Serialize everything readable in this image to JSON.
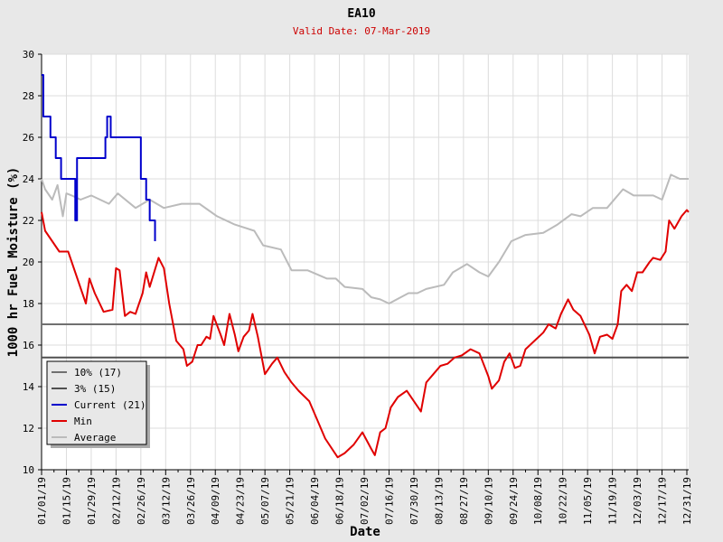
{
  "chart_data": {
    "type": "line",
    "title": "EA10",
    "subtitle": "Valid Date: 07-Mar-2019",
    "xlabel": "Date",
    "ylabel": "1000 hr Fuel Moisture (%)",
    "ylim": [
      10,
      30
    ],
    "yticks": [
      10,
      12,
      14,
      16,
      18,
      20,
      22,
      24,
      26,
      28,
      30
    ],
    "xlim_days": [
      0,
      365
    ],
    "xtick_labels": [
      "01/01/19",
      "01/15/19",
      "01/29/19",
      "02/12/19",
      "02/26/19",
      "03/12/19",
      "03/26/19",
      "04/09/19",
      "04/23/19",
      "05/07/19",
      "05/21/19",
      "06/04/19",
      "06/18/19",
      "07/02/19",
      "07/16/19",
      "07/30/19",
      "08/13/19",
      "08/27/19",
      "09/10/19",
      "09/24/19",
      "10/08/19",
      "10/22/19",
      "11/05/19",
      "11/19/19",
      "12/03/19",
      "12/17/19",
      "12/31/19"
    ],
    "grid": true,
    "legend_position": "bottom-left",
    "thresholds": [
      {
        "name": "10% (17)",
        "value": 17.0,
        "color": "#707070"
      },
      {
        "name": "3% (15)",
        "value": 15.4,
        "color": "#505050"
      }
    ],
    "series": [
      {
        "name": "Current (21)",
        "color": "#0000cc",
        "step": true,
        "points": [
          [
            0,
            29
          ],
          [
            1,
            27
          ],
          [
            4,
            27
          ],
          [
            5,
            26
          ],
          [
            7,
            26
          ],
          [
            8,
            25
          ],
          [
            10,
            25
          ],
          [
            11,
            24
          ],
          [
            18,
            24
          ],
          [
            19,
            22
          ],
          [
            20,
            25
          ],
          [
            34,
            25
          ],
          [
            36,
            26
          ],
          [
            37,
            27
          ],
          [
            38,
            27
          ],
          [
            39,
            26
          ],
          [
            54,
            26
          ],
          [
            56,
            24
          ],
          [
            59,
            23
          ],
          [
            61,
            22
          ],
          [
            64,
            21
          ]
        ]
      },
      {
        "name": "Min",
        "color": "#e00000",
        "points": [
          [
            0,
            22.4
          ],
          [
            2,
            21.5
          ],
          [
            6,
            21
          ],
          [
            10,
            20.5
          ],
          [
            15,
            20.5
          ],
          [
            19,
            19.5
          ],
          [
            25,
            18
          ],
          [
            27,
            19.2
          ],
          [
            30,
            18.5
          ],
          [
            35,
            17.6
          ],
          [
            40,
            17.7
          ],
          [
            42,
            19.7
          ],
          [
            44,
            19.6
          ],
          [
            47,
            17.4
          ],
          [
            50,
            17.6
          ],
          [
            53,
            17.5
          ],
          [
            57,
            18.5
          ],
          [
            59,
            19.5
          ],
          [
            61,
            18.8
          ],
          [
            66,
            20.2
          ],
          [
            69,
            19.7
          ],
          [
            72,
            18
          ],
          [
            76,
            16.2
          ],
          [
            80,
            15.8
          ],
          [
            82,
            15
          ],
          [
            85,
            15.2
          ],
          [
            88,
            16
          ],
          [
            90,
            16
          ],
          [
            93,
            16.4
          ],
          [
            95,
            16.3
          ],
          [
            97,
            17.4
          ],
          [
            101,
            16.5
          ],
          [
            103,
            16
          ],
          [
            106,
            17.5
          ],
          [
            109,
            16.5
          ],
          [
            111,
            15.7
          ],
          [
            114,
            16.4
          ],
          [
            117,
            16.7
          ],
          [
            119,
            17.5
          ],
          [
            122,
            16.4
          ],
          [
            126,
            14.6
          ],
          [
            130,
            15.1
          ],
          [
            133,
            15.4
          ],
          [
            137,
            14.7
          ],
          [
            141,
            14.2
          ],
          [
            145,
            13.8
          ],
          [
            151,
            13.3
          ],
          [
            155,
            12.5
          ],
          [
            160,
            11.5
          ],
          [
            167,
            10.6
          ],
          [
            171,
            10.8
          ],
          [
            176,
            11.2
          ],
          [
            181,
            11.8
          ],
          [
            186,
            11
          ],
          [
            188,
            10.7
          ],
          [
            191,
            11.8
          ],
          [
            194,
            12
          ],
          [
            197,
            13
          ],
          [
            201,
            13.5
          ],
          [
            206,
            13.8
          ],
          [
            210,
            13.3
          ],
          [
            214,
            12.8
          ],
          [
            217,
            14.2
          ],
          [
            221,
            14.6
          ],
          [
            225,
            15
          ],
          [
            229,
            15.1
          ],
          [
            233,
            15.4
          ],
          [
            237,
            15.5
          ],
          [
            242,
            15.8
          ],
          [
            247,
            15.6
          ],
          [
            252,
            14.5
          ],
          [
            254,
            13.9
          ],
          [
            258,
            14.3
          ],
          [
            261,
            15.2
          ],
          [
            264,
            15.6
          ],
          [
            267,
            14.9
          ],
          [
            270,
            15
          ],
          [
            273,
            15.8
          ],
          [
            278,
            16.2
          ],
          [
            283,
            16.6
          ],
          [
            286,
            17
          ],
          [
            290,
            16.8
          ],
          [
            293,
            17.5
          ],
          [
            297,
            18.2
          ],
          [
            300,
            17.7
          ],
          [
            304,
            17.4
          ],
          [
            309,
            16.5
          ],
          [
            312,
            15.6
          ],
          [
            315,
            16.4
          ],
          [
            319,
            16.5
          ],
          [
            322,
            16.3
          ],
          [
            325,
            17
          ],
          [
            327,
            18.6
          ],
          [
            330,
            18.9
          ],
          [
            333,
            18.6
          ],
          [
            336,
            19.5
          ],
          [
            339,
            19.5
          ],
          [
            343,
            20
          ],
          [
            345,
            20.2
          ],
          [
            349,
            20.1
          ],
          [
            352,
            20.5
          ],
          [
            354,
            22
          ],
          [
            357,
            21.6
          ],
          [
            361,
            22.2
          ],
          [
            364,
            22.5
          ],
          [
            365,
            22.4
          ]
        ]
      },
      {
        "name": "Average",
        "color": "#bbbbbb",
        "points": [
          [
            0,
            24
          ],
          [
            2,
            23.5
          ],
          [
            6,
            23
          ],
          [
            9,
            23.7
          ],
          [
            12,
            22.2
          ],
          [
            14,
            23.3
          ],
          [
            17,
            23.2
          ],
          [
            22,
            23
          ],
          [
            28,
            23.2
          ],
          [
            38,
            22.8
          ],
          [
            43,
            23.3
          ],
          [
            53,
            22.6
          ],
          [
            61,
            23
          ],
          [
            69,
            22.6
          ],
          [
            79,
            22.8
          ],
          [
            89,
            22.8
          ],
          [
            94,
            22.5
          ],
          [
            99,
            22.2
          ],
          [
            109,
            21.8
          ],
          [
            120,
            21.5
          ],
          [
            125,
            20.8
          ],
          [
            135,
            20.6
          ],
          [
            141,
            19.6
          ],
          [
            150,
            19.6
          ],
          [
            161,
            19.2
          ],
          [
            166,
            19.2
          ],
          [
            171,
            18.8
          ],
          [
            181,
            18.7
          ],
          [
            186,
            18.3
          ],
          [
            191,
            18.2
          ],
          [
            196,
            18
          ],
          [
            207,
            18.5
          ],
          [
            212,
            18.5
          ],
          [
            217,
            18.7
          ],
          [
            227,
            18.9
          ],
          [
            232,
            19.5
          ],
          [
            240,
            19.9
          ],
          [
            247,
            19.5
          ],
          [
            252,
            19.3
          ],
          [
            258,
            20
          ],
          [
            265,
            21
          ],
          [
            273,
            21.3
          ],
          [
            283,
            21.4
          ],
          [
            291,
            21.8
          ],
          [
            299,
            22.3
          ],
          [
            304,
            22.2
          ],
          [
            311,
            22.6
          ],
          [
            319,
            22.6
          ],
          [
            328,
            23.5
          ],
          [
            334,
            23.2
          ],
          [
            345,
            23.2
          ],
          [
            350,
            23
          ],
          [
            355,
            24.2
          ],
          [
            360,
            24
          ],
          [
            365,
            24
          ]
        ]
      }
    ]
  }
}
